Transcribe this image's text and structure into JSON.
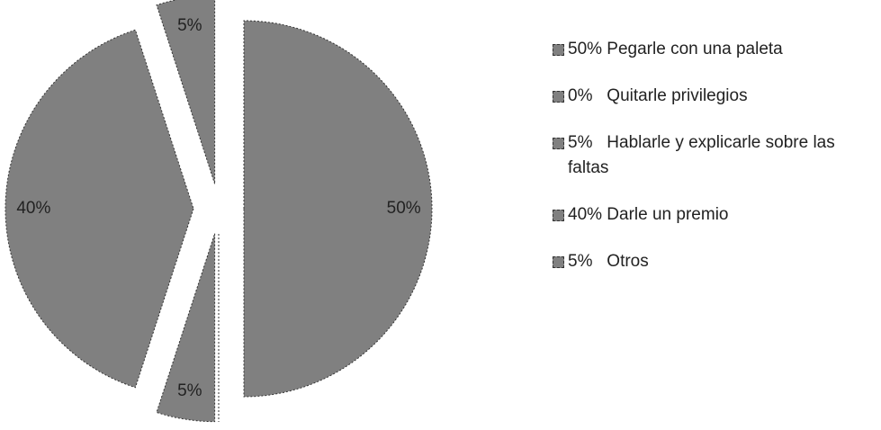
{
  "chart_data": {
    "type": "pie",
    "categories": [
      "50% Pegarle con una paleta",
      "0%   Quitarle privilegios",
      "5%   Hablarle y explicarle sobre las faltas",
      "40% Darle un premio",
      "5%   Otros"
    ],
    "values": [
      50,
      0,
      5,
      40,
      5
    ],
    "value_labels": [
      "50%",
      "0%",
      "5%",
      "40%",
      "5%"
    ],
    "color": "#808080",
    "legend": "right"
  }
}
